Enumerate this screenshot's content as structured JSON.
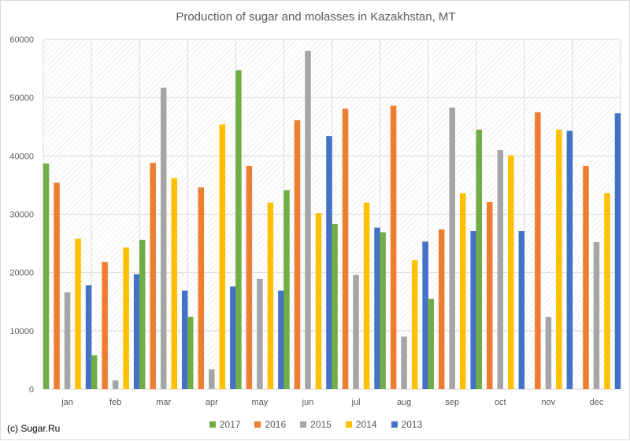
{
  "chart_data": {
    "type": "bar",
    "title": "Production of sugar and molasses in Kazakhstan, MT",
    "xlabel": "",
    "ylabel": "",
    "ylim": [
      0,
      60000
    ],
    "yticks": [
      0,
      10000,
      20000,
      30000,
      40000,
      50000,
      60000
    ],
    "categories": [
      "jan",
      "feb",
      "mar",
      "apr",
      "may",
      "jun",
      "jul",
      "aug",
      "sep",
      "oct",
      "nov",
      "dec"
    ],
    "series": [
      {
        "name": "2017",
        "color": "#70ad47",
        "values": [
          38700,
          5800,
          25600,
          12400,
          54700,
          34100,
          28300,
          26900,
          15500,
          44500,
          null,
          null
        ]
      },
      {
        "name": "2016",
        "color": "#ed7d31",
        "values": [
          35400,
          21800,
          38800,
          34600,
          38300,
          46100,
          48100,
          48600,
          27400,
          32100,
          47500,
          38300
        ]
      },
      {
        "name": "2015",
        "color": "#a5a5a5",
        "values": [
          16600,
          1500,
          51700,
          3400,
          18900,
          58000,
          19600,
          9000,
          48300,
          41000,
          12400,
          25200
        ]
      },
      {
        "name": "2014",
        "color": "#ffc000",
        "values": [
          25800,
          24300,
          36200,
          45400,
          32000,
          30200,
          32000,
          22100,
          33600,
          40100,
          44500,
          33600
        ]
      },
      {
        "name": "2013",
        "color": "#4472c4",
        "values": [
          17800,
          19700,
          16900,
          17600,
          16900,
          43400,
          27700,
          25300,
          27100,
          27100,
          44300,
          47300
        ]
      }
    ],
    "grid": true,
    "legend_position": "bottom"
  },
  "footer": {
    "copyright": "(c) Sugar.Ru"
  }
}
